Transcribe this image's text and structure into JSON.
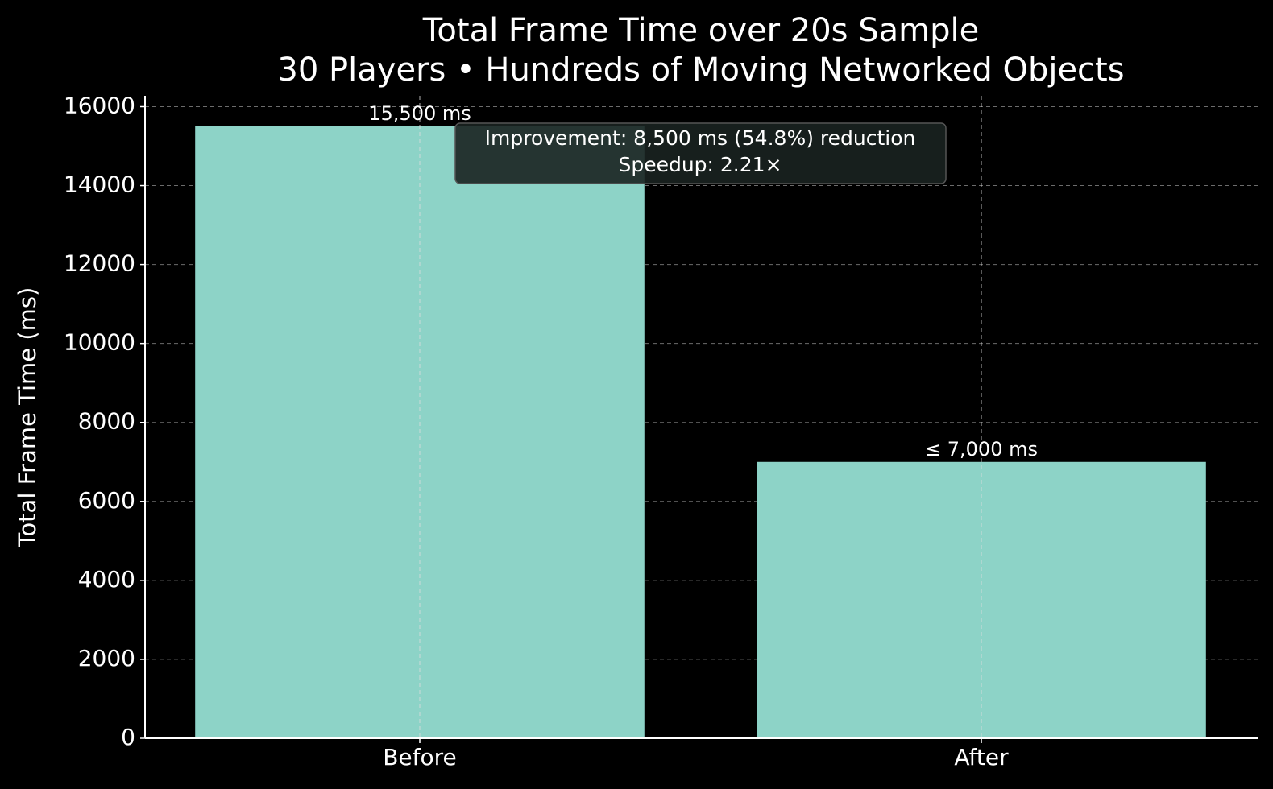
{
  "chart_data": {
    "type": "bar",
    "title": [
      "Total Frame Time over 20s Sample",
      "30 Players • Hundreds of Moving Networked Objects"
    ],
    "y_label": "Total Frame Time (ms)",
    "categories": [
      "Before",
      "After"
    ],
    "values": [
      15500,
      7000
    ],
    "value_labels": [
      "15,500 ms",
      "≤ 7,000 ms"
    ],
    "color": "#8dd3c7",
    "ylim": [
      0,
      16275
    ],
    "yticks": [
      0,
      2000,
      4000,
      6000,
      8000,
      10000,
      12000,
      14000,
      16000
    ],
    "grid": true,
    "annotation": [
      "Improvement: 8,500 ms (54.8%) reduction",
      "Speedup: 2.21×"
    ]
  }
}
